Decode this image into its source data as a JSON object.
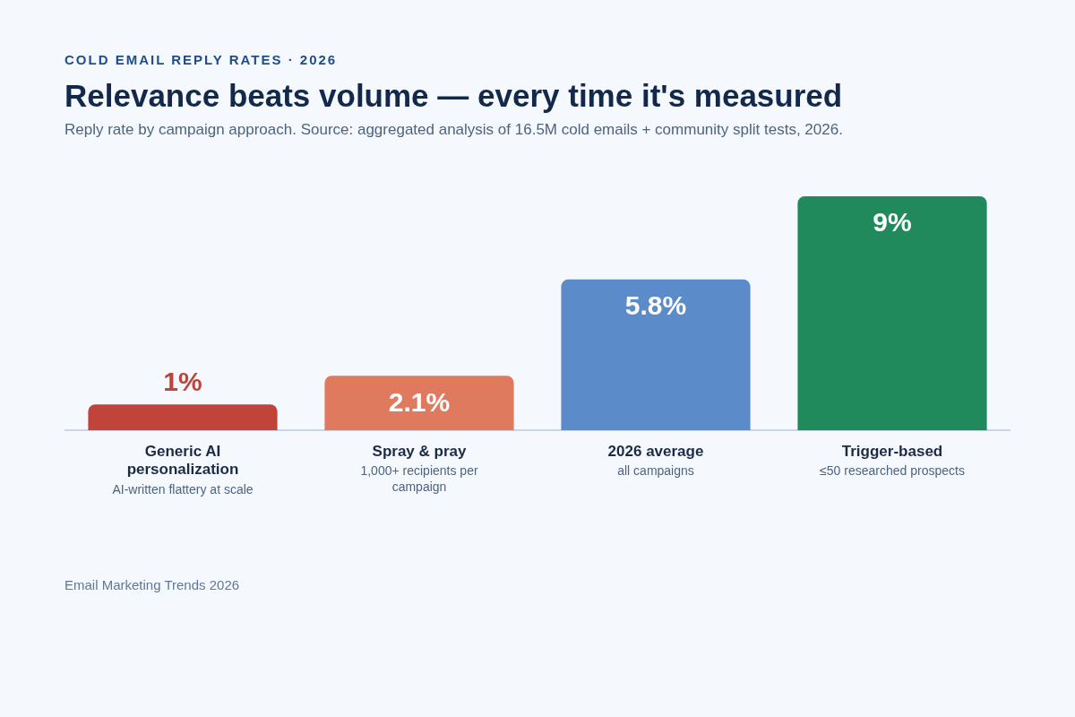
{
  "chart_data": {
    "type": "bar",
    "title": "Relevance beats volume — every time it's measured",
    "subtitle": "Reply rate by campaign approach. Source: aggregated analysis of 16.5M cold emails + community split tests, 2026.",
    "categories": [
      "Generic AI personalization",
      "Spray & pray",
      "2026 average",
      "Trigger-based"
    ],
    "values": [
      1,
      2.1,
      5.8,
      9
    ],
    "colors": [
      "#c0443a",
      "#e07a5f",
      "#5b8bc9",
      "#218a5c"
    ],
    "value_labels": [
      "1%",
      "2.1%",
      "5.8%",
      "9%"
    ],
    "annotations": [
      "COLD EMAIL REPLY RATES · 2026",
      "AI-written flattery at scale",
      "1,000+ recipients per campaign",
      "all campaigns",
      "≤50 researched prospects",
      "Email Marketing Trends 2026"
    ],
    "grid": false,
    "legend": false
  }
}
